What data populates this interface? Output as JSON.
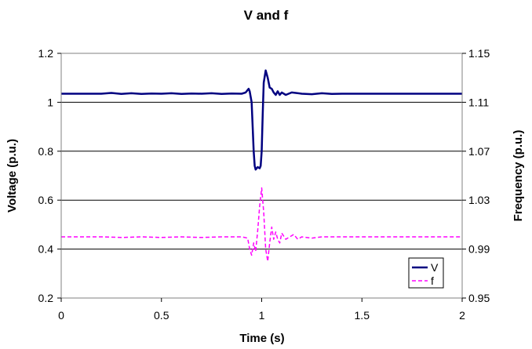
{
  "chart_data": {
    "type": "line",
    "title": "V and f",
    "xlabel": "Time (s)",
    "ylabel": "Voltage (p.u.)",
    "y2label": "Frequency (p.u.)",
    "xlim": [
      0,
      2
    ],
    "ylim": [
      0.2,
      1.2
    ],
    "y2lim": [
      0.95,
      1.15
    ],
    "x_ticks": [
      "0",
      "0.5",
      "1",
      "1.5",
      "2"
    ],
    "y_ticks": [
      "0.2",
      "0.4",
      "0.6",
      "0.8",
      "1",
      "1.2"
    ],
    "y2_ticks": [
      "0.95",
      "0.99",
      "1.03",
      "1.07",
      "1.11",
      "1.15"
    ],
    "grid": "horizontal",
    "legend_position": "bottom-right",
    "series": [
      {
        "name": "V",
        "axis": "left",
        "color": "#000080",
        "style": "solid",
        "x": [
          0,
          0.1,
          0.2,
          0.25,
          0.3,
          0.35,
          0.4,
          0.45,
          0.5,
          0.55,
          0.6,
          0.65,
          0.7,
          0.75,
          0.8,
          0.85,
          0.9,
          0.92,
          0.93,
          0.935,
          0.94,
          0.95,
          0.955,
          0.96,
          0.965,
          0.97,
          0.98,
          0.99,
          0.995,
          1.0,
          1.005,
          1.01,
          1.02,
          1.03,
          1.04,
          1.05,
          1.06,
          1.07,
          1.08,
          1.09,
          1.1,
          1.12,
          1.15,
          1.2,
          1.25,
          1.3,
          1.35,
          1.4,
          1.6,
          1.8,
          2.0
        ],
        "values": [
          1.035,
          1.035,
          1.035,
          1.038,
          1.034,
          1.037,
          1.034,
          1.036,
          1.035,
          1.037,
          1.034,
          1.036,
          1.035,
          1.037,
          1.034,
          1.036,
          1.035,
          1.04,
          1.05,
          1.055,
          1.045,
          1.0,
          0.9,
          0.8,
          0.74,
          0.725,
          0.735,
          0.73,
          0.74,
          0.8,
          0.95,
          1.08,
          1.13,
          1.1,
          1.06,
          1.055,
          1.04,
          1.03,
          1.045,
          1.03,
          1.04,
          1.03,
          1.04,
          1.035,
          1.033,
          1.037,
          1.034,
          1.035,
          1.035,
          1.035,
          1.035
        ]
      },
      {
        "name": "f",
        "axis": "right",
        "color": "#ff00ff",
        "style": "dashed",
        "x": [
          0,
          0.1,
          0.2,
          0.3,
          0.4,
          0.5,
          0.6,
          0.7,
          0.8,
          0.9,
          0.93,
          0.94,
          0.95,
          0.96,
          0.97,
          0.98,
          0.99,
          1.0,
          1.01,
          1.02,
          1.03,
          1.04,
          1.05,
          1.06,
          1.07,
          1.08,
          1.09,
          1.1,
          1.12,
          1.14,
          1.16,
          1.18,
          1.2,
          1.25,
          1.3,
          1.4,
          1.6,
          1.8,
          2.0
        ],
        "values": [
          1.0,
          1.0,
          1.0,
          0.9995,
          1.0,
          0.9995,
          1.0,
          0.9995,
          1.0,
          1.0,
          0.999,
          0.99,
          0.985,
          0.995,
          0.988,
          1.005,
          1.025,
          1.04,
          1.02,
          0.99,
          0.98,
          0.995,
          1.008,
          0.998,
          1.004,
          0.998,
          0.995,
          1.003,
          0.998,
          1.0,
          1.002,
          0.998,
          1.0,
          0.999,
          1.0,
          1.0,
          1.0,
          1.0,
          1.0
        ]
      }
    ]
  }
}
